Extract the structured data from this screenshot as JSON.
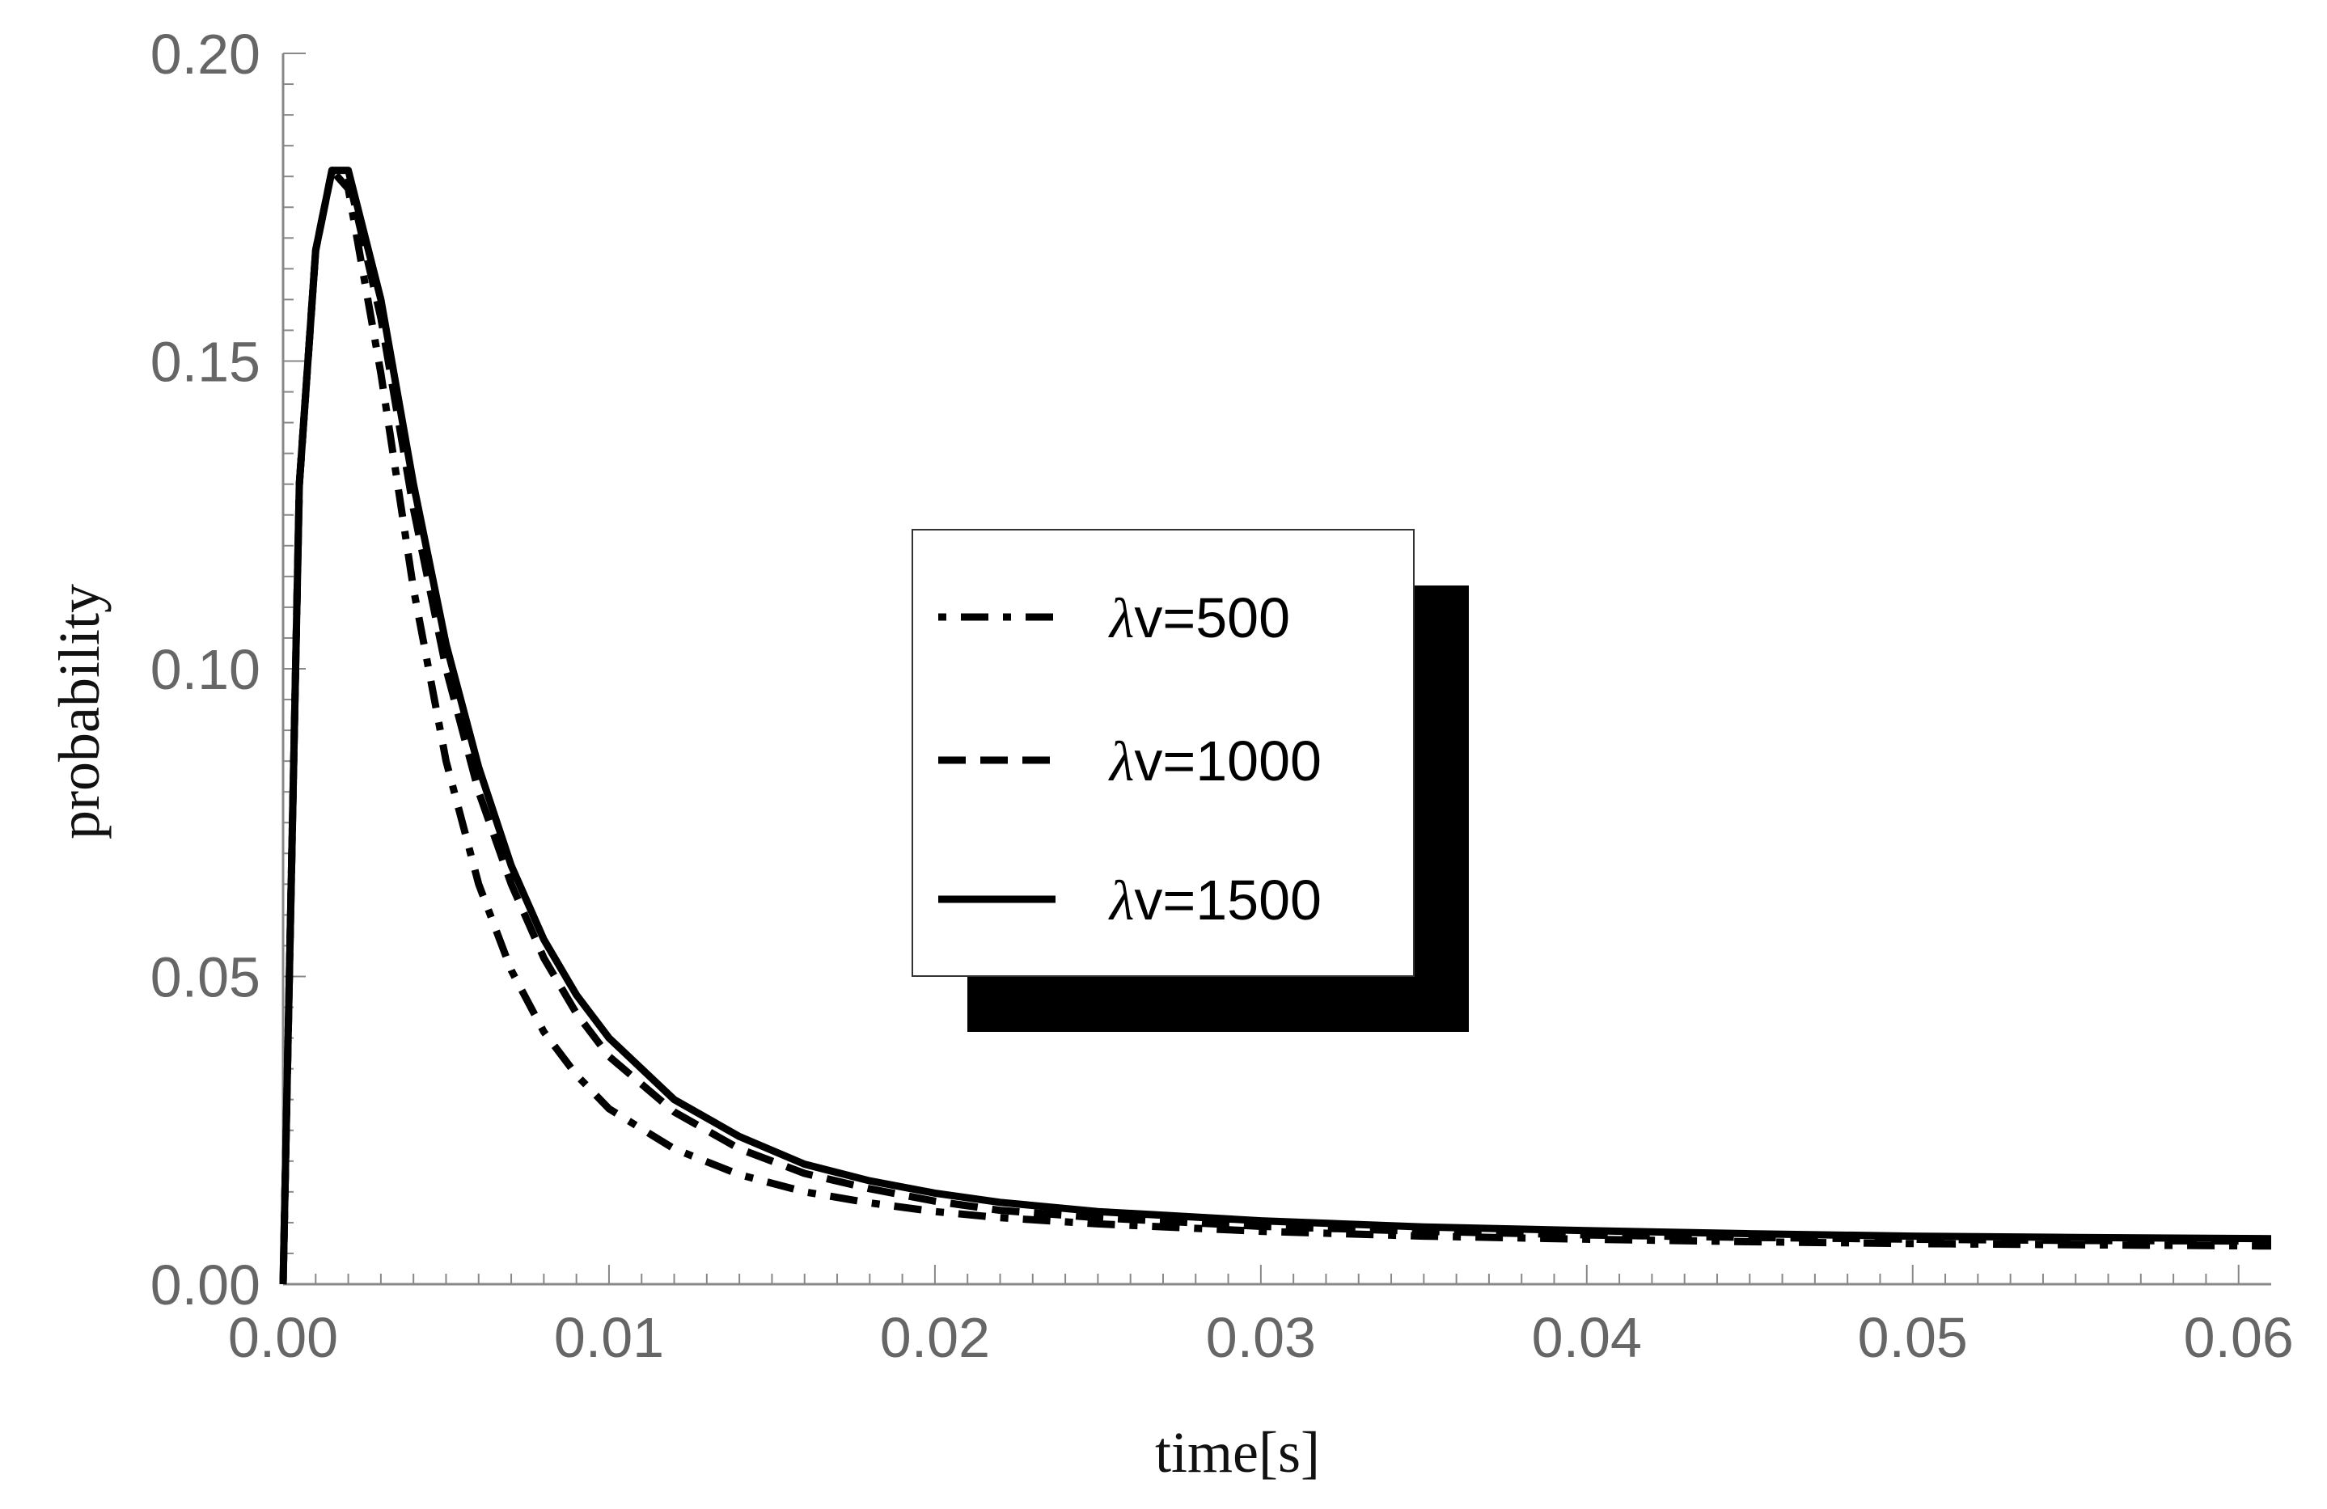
{
  "chart_data": {
    "type": "line",
    "title": "",
    "xlabel": "time[s]",
    "ylabel": "probability",
    "xlim": [
      0,
      0.061
    ],
    "ylim": [
      0,
      0.2
    ],
    "x_ticks": [
      "0.00",
      "0.01",
      "0.02",
      "0.03",
      "0.04",
      "0.05",
      "0.06"
    ],
    "y_ticks": [
      "0.00",
      "0.05",
      "0.10",
      "0.15",
      "0.20"
    ],
    "legend_position": "center",
    "series": [
      {
        "name": "λv=500",
        "label_symbol": "λ",
        "label_rest": "v=500",
        "style": "dash-dot",
        "x": [
          0,
          0.0005,
          0.001,
          0.0015,
          0.002,
          0.003,
          0.004,
          0.005,
          0.006,
          0.007,
          0.008,
          0.009,
          0.01,
          0.012,
          0.014,
          0.016,
          0.018,
          0.02,
          0.022,
          0.025,
          0.03,
          0.035,
          0.04,
          0.045,
          0.05,
          0.055,
          0.061
        ],
        "y": [
          0,
          0.13,
          0.168,
          0.181,
          0.178,
          0.148,
          0.113,
          0.085,
          0.065,
          0.051,
          0.041,
          0.034,
          0.0285,
          0.022,
          0.0178,
          0.015,
          0.0132,
          0.0118,
          0.0108,
          0.0098,
          0.0086,
          0.0078,
          0.0073,
          0.0069,
          0.0066,
          0.0064,
          0.0062
        ]
      },
      {
        "name": "λv=1000",
        "label_symbol": "λ",
        "label_rest": "v=1000",
        "style": "dashed",
        "x": [
          0,
          0.0005,
          0.001,
          0.0015,
          0.002,
          0.003,
          0.004,
          0.005,
          0.006,
          0.007,
          0.008,
          0.009,
          0.01,
          0.012,
          0.014,
          0.016,
          0.018,
          0.02,
          0.022,
          0.025,
          0.03,
          0.035,
          0.04,
          0.045,
          0.05,
          0.055,
          0.061
        ],
        "y": [
          0,
          0.13,
          0.168,
          0.181,
          0.18,
          0.157,
          0.126,
          0.1,
          0.08,
          0.065,
          0.053,
          0.044,
          0.037,
          0.028,
          0.022,
          0.018,
          0.0155,
          0.0135,
          0.012,
          0.0108,
          0.0094,
          0.0086,
          0.008,
          0.0076,
          0.0073,
          0.0071,
          0.007
        ]
      },
      {
        "name": "λv=1500",
        "label_symbol": "λ",
        "label_rest": "v=1500",
        "style": "solid",
        "x": [
          0,
          0.0005,
          0.001,
          0.0015,
          0.002,
          0.003,
          0.004,
          0.005,
          0.006,
          0.007,
          0.008,
          0.009,
          0.01,
          0.012,
          0.014,
          0.016,
          0.018,
          0.02,
          0.022,
          0.025,
          0.03,
          0.035,
          0.04,
          0.045,
          0.05,
          0.055,
          0.061
        ],
        "y": [
          0,
          0.13,
          0.168,
          0.181,
          0.181,
          0.16,
          0.13,
          0.104,
          0.084,
          0.068,
          0.056,
          0.047,
          0.04,
          0.03,
          0.024,
          0.0195,
          0.0168,
          0.0148,
          0.0133,
          0.0118,
          0.0103,
          0.0093,
          0.0087,
          0.0082,
          0.0078,
          0.0076,
          0.0074
        ]
      }
    ]
  }
}
